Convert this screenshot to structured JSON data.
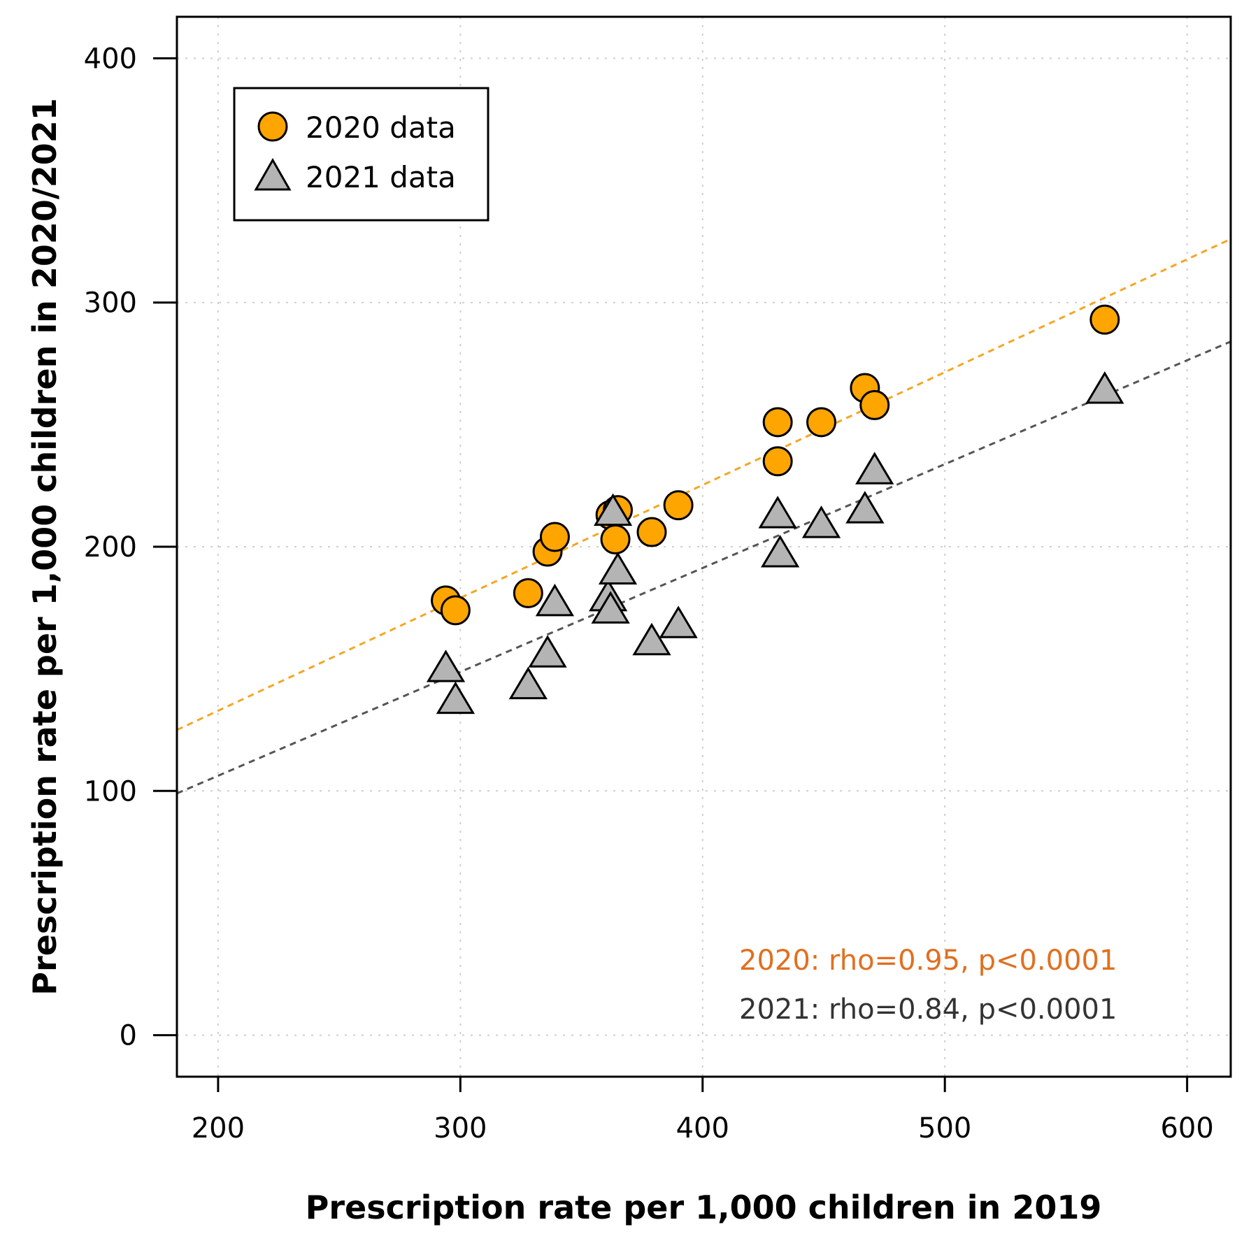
{
  "chart_data": {
    "type": "scatter",
    "title": "",
    "xlabel": "Prescription rate per 1,000 children in 2019",
    "ylabel": "Prescription rate per 1,000 children in 2020/2021",
    "xlim": [
      183,
      618
    ],
    "ylim": [
      -17,
      417
    ],
    "xticks": [
      "200",
      "300",
      "400",
      "500",
      "600"
    ],
    "yticks": [
      "0",
      "100",
      "200",
      "300",
      "400"
    ],
    "grid": true,
    "legend_position": "top-left",
    "legend": [
      "2020 data",
      "2021 data"
    ],
    "series": [
      {
        "name": "2020 data",
        "marker": "circle",
        "color": "#FFA500",
        "x": [
          294,
          298,
          328,
          336,
          339,
          362,
          365,
          364,
          379,
          390,
          431,
          431,
          449,
          467,
          471,
          566
        ],
        "y": [
          178,
          174,
          181,
          198,
          204,
          213,
          215,
          203,
          206,
          217,
          251,
          235,
          251,
          265,
          258,
          293
        ],
        "fit": {
          "x": [
            183,
            618
          ],
          "y": [
            125,
            326
          ]
        }
      },
      {
        "name": "2021 data",
        "marker": "triangle",
        "color": "#B4B4B4",
        "x": [
          294,
          298,
          328,
          336,
          339,
          361,
          362,
          363,
          365,
          379,
          390,
          431,
          432,
          449,
          467,
          471,
          566
        ],
        "y": [
          151,
          138,
          144,
          157,
          178,
          180,
          175,
          215,
          191,
          162,
          169,
          214,
          198,
          210,
          216,
          232,
          265
        ],
        "fit": {
          "x": [
            183,
            618
          ],
          "y": [
            99,
            284
          ]
        }
      }
    ],
    "annotations": [
      {
        "text": "2020: rho=0.95, p<0.0001",
        "color": "#E07020"
      },
      {
        "text": "2021: rho=0.84, p<0.0001",
        "color": "#333333"
      }
    ]
  }
}
